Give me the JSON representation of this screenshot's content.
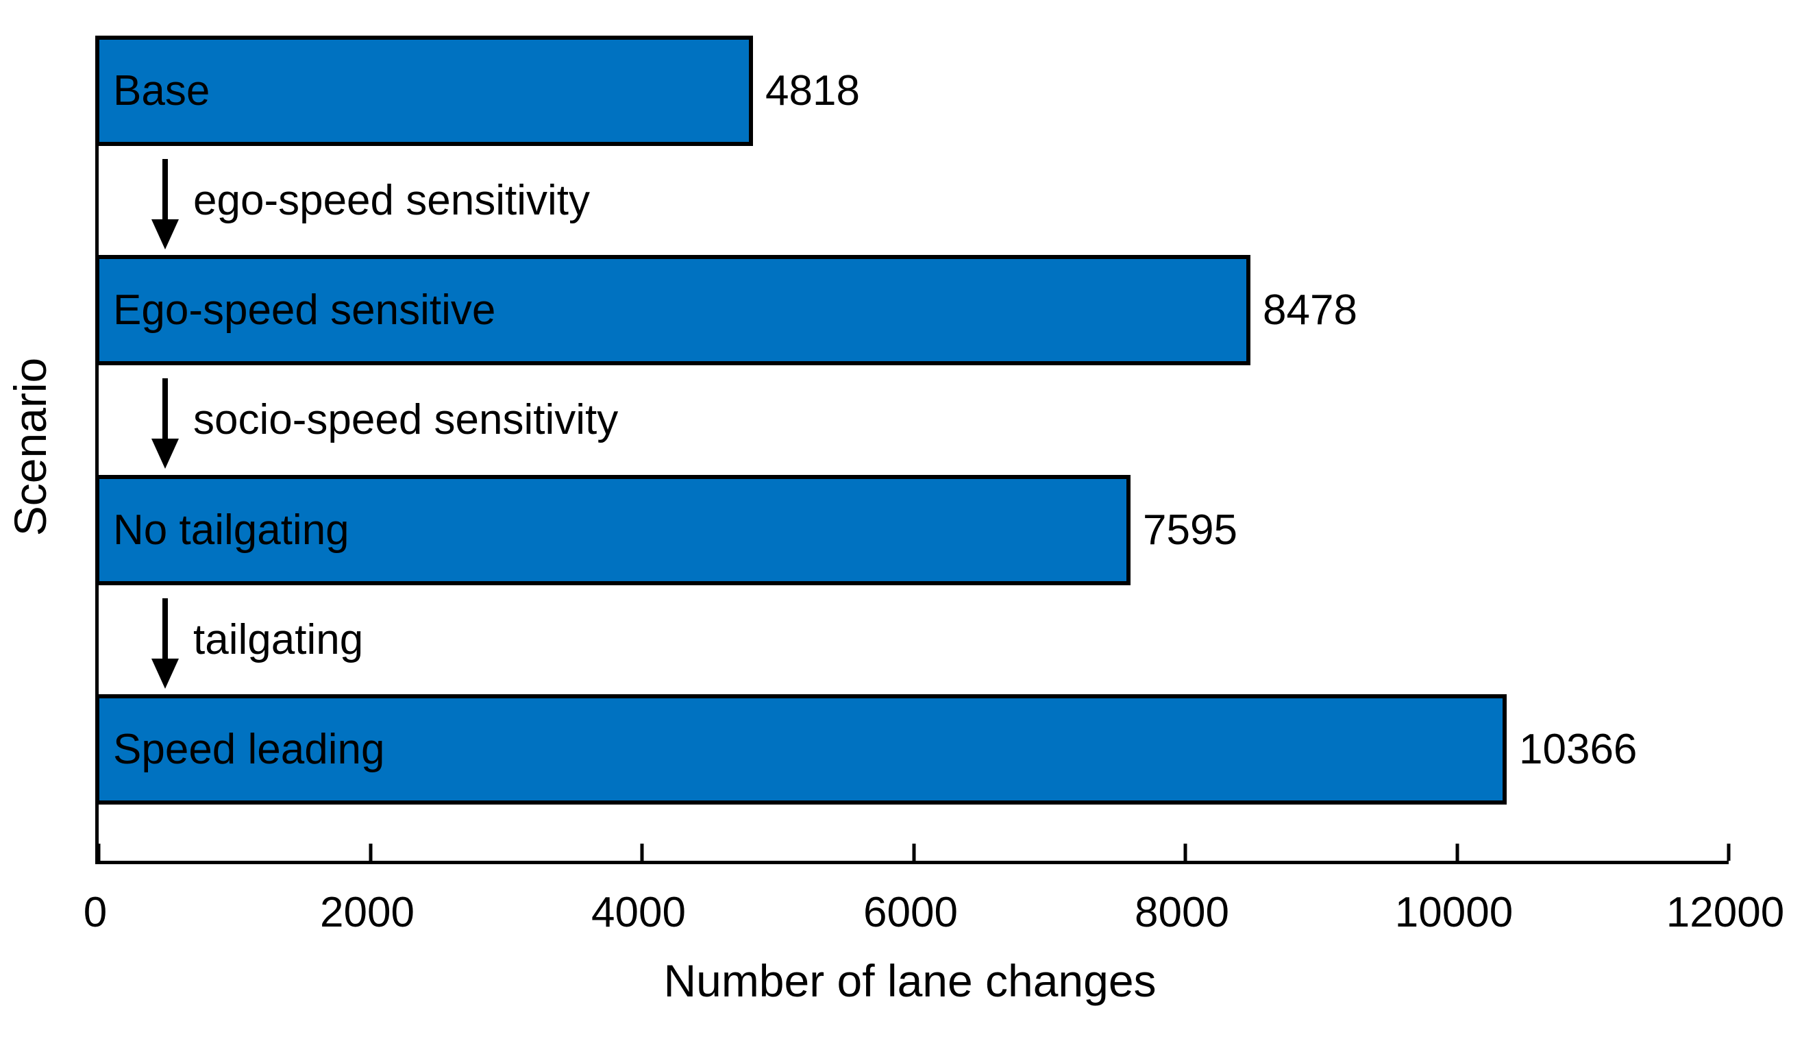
{
  "chart_data": {
    "type": "bar",
    "orientation": "horizontal",
    "title": "",
    "xlabel": "Number of lane changes",
    "ylabel": "Scenario",
    "categories": [
      "Base",
      "Ego-speed sensitive",
      "No tailgating",
      "Speed leading"
    ],
    "values": [
      4818,
      8478,
      7595,
      10366
    ],
    "value_labels": [
      "4818",
      "8478",
      "7595",
      "10366"
    ],
    "transitions": [
      {
        "from": "Base",
        "to": "Ego-speed sensitive",
        "label": "ego-speed sensitivity"
      },
      {
        "from": "Ego-speed sensitive",
        "to": "No tailgating",
        "label": "socio-speed sensitivity"
      },
      {
        "from": "No tailgating",
        "to": "Speed leading",
        "label": "tailgating"
      }
    ],
    "xlim": [
      0,
      12000
    ],
    "xticks": [
      0,
      2000,
      4000,
      6000,
      8000,
      10000,
      12000
    ],
    "xtick_labels": [
      "0",
      "2000",
      "4000",
      "6000",
      "8000",
      "10000",
      "12000"
    ],
    "grid": false,
    "legend": null,
    "bar_color": "#0072C1",
    "bar_edge_color": "#000000",
    "text_color": "#000000",
    "axis_color": "#000000",
    "arrow_color": "#000000"
  }
}
